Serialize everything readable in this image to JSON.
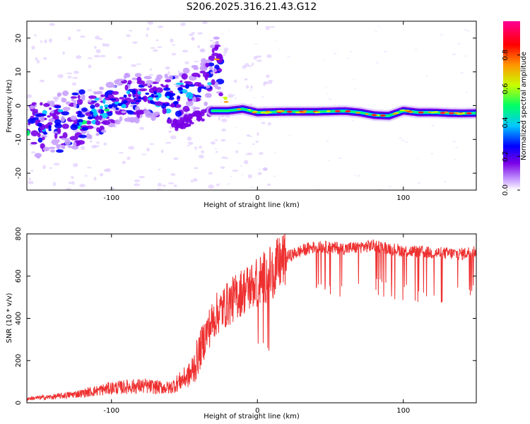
{
  "title": "S206.2025.316.21.43.G12",
  "chart_data": [
    {
      "type": "heatmap",
      "xlabel": "Height of straight line (km)",
      "ylabel": "Frequency (Hz)",
      "xlim": [
        -158,
        150
      ],
      "ylim": [
        -25,
        25
      ],
      "xticks": [
        -100,
        0,
        100
      ],
      "yticks": [
        -20,
        -10,
        0,
        10,
        20
      ],
      "colorbar": {
        "label": "Normalized spectral amplitude",
        "range": [
          0.0,
          1.0
        ],
        "ticks": [
          0.0,
          0.2,
          0.4,
          0.6,
          0.8
        ],
        "colormap": [
          "#ffffff",
          "#c8a0ff",
          "#7a00e6",
          "#0000ff",
          "#00c8ff",
          "#00ff64",
          "#c8ff00",
          "#ff9600",
          "#ff0000",
          "#ff0096"
        ]
      },
      "ridge": {
        "x": [
          -158,
          -140,
          -120,
          -100,
          -90,
          -75,
          -60,
          -45,
          -35,
          -28,
          -20,
          -10,
          0,
          20,
          40,
          60,
          70,
          80,
          90,
          100,
          110,
          120,
          130,
          140,
          150
        ],
        "y": [
          -7,
          -6,
          -4,
          0,
          2,
          3,
          2,
          4,
          7,
          14,
          -1.5,
          -1,
          -2,
          -1.8,
          -1.8,
          -1.6,
          -2,
          -2.8,
          -3,
          -1.5,
          -2,
          -2,
          -2.2,
          -2.3,
          -2.2
        ]
      }
    },
    {
      "type": "line",
      "xlabel": "Height of straight line (km)",
      "ylabel": "SNR (10 * v/v)",
      "xlim": [
        -158,
        150
      ],
      "ylim": [
        0,
        800
      ],
      "xticks": [
        -100,
        0,
        100
      ],
      "yticks": [
        0,
        200,
        400,
        600,
        800
      ],
      "color": "#ee3030",
      "envelope": {
        "x": [
          -158,
          -140,
          -120,
          -100,
          -80,
          -60,
          -45,
          -35,
          -28,
          -20,
          -10,
          0,
          10,
          20,
          30,
          40,
          60,
          80,
          100,
          120,
          140,
          150
        ],
        "y": [
          20,
          28,
          45,
          70,
          80,
          70,
          140,
          330,
          420,
          470,
          530,
          570,
          620,
          690,
          720,
          740,
          730,
          745,
          720,
          710,
          705,
          720
        ]
      }
    }
  ]
}
